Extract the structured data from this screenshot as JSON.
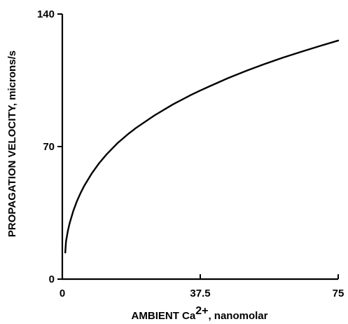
{
  "chart_data": {
    "type": "line",
    "title": "",
    "xlabel": {
      "text": "AMBIENT Ca",
      "superscript": "2+",
      "suffix": ", nanomolar"
    },
    "ylabel": "PROPAGATION VELOCITY, microns/s",
    "xlim": [
      0,
      75
    ],
    "ylim": [
      0,
      140
    ],
    "xticks": [
      0,
      37.5,
      75
    ],
    "yticks": [
      0,
      70,
      140
    ],
    "xtick_labels": [
      "0",
      "37.5",
      "75"
    ],
    "ytick_labels": [
      "0",
      "70",
      "140"
    ],
    "grid": false,
    "legend": "none",
    "series": [
      {
        "color": "#000000",
        "x": [
          0.8,
          1,
          1.5,
          2,
          3,
          4,
          5,
          6,
          8,
          10,
          12,
          15,
          18,
          20,
          25,
          30,
          35,
          37.5,
          40,
          45,
          50,
          55,
          60,
          65,
          70,
          75
        ],
        "y": [
          14,
          19.8,
          25.4,
          29.6,
          36.1,
          41.3,
          45.6,
          49.4,
          55.8,
          61.2,
          65.8,
          71.8,
          76.8,
          79.8,
          86.4,
          92.2,
          97.3,
          99.6,
          101.8,
          106.1,
          110.0,
          113.6,
          117.0,
          120.1,
          123.1,
          126.0
        ]
      }
    ]
  }
}
